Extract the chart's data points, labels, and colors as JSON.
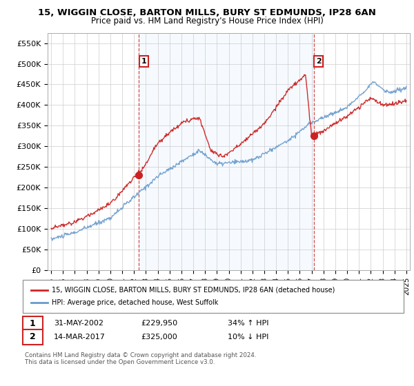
{
  "title": "15, WIGGIN CLOSE, BARTON MILLS, BURY ST EDMUNDS, IP28 6AN",
  "subtitle": "Price paid vs. HM Land Registry's House Price Index (HPI)",
  "legend_line1": "15, WIGGIN CLOSE, BARTON MILLS, BURY ST EDMUNDS, IP28 6AN (detached house)",
  "legend_line2": "HPI: Average price, detached house, West Suffolk",
  "annotation1_date": "31-MAY-2002",
  "annotation1_price": "£229,950",
  "annotation1_hpi": "34% ↑ HPI",
  "annotation2_date": "14-MAR-2017",
  "annotation2_price": "£325,000",
  "annotation2_hpi": "10% ↓ HPI",
  "footnote": "Contains HM Land Registry data © Crown copyright and database right 2024.\nThis data is licensed under the Open Government Licence v3.0.",
  "red_color": "#cc2222",
  "blue_color": "#6699cc",
  "fill_color": "#ddeeff",
  "dashed_color": "#cc2222",
  "ylim": [
    0,
    575000
  ],
  "yticks": [
    0,
    50000,
    100000,
    150000,
    200000,
    250000,
    300000,
    350000,
    400000,
    450000,
    500000,
    550000
  ],
  "ytick_labels": [
    "£0",
    "£50K",
    "£100K",
    "£150K",
    "£200K",
    "£250K",
    "£300K",
    "£350K",
    "£400K",
    "£450K",
    "£500K",
    "£550K"
  ],
  "sale1_x": 2002.42,
  "sale1_y": 229950,
  "sale2_x": 2017.19,
  "sale2_y": 325000,
  "xlim_left": 1994.7,
  "xlim_right": 2025.3
}
